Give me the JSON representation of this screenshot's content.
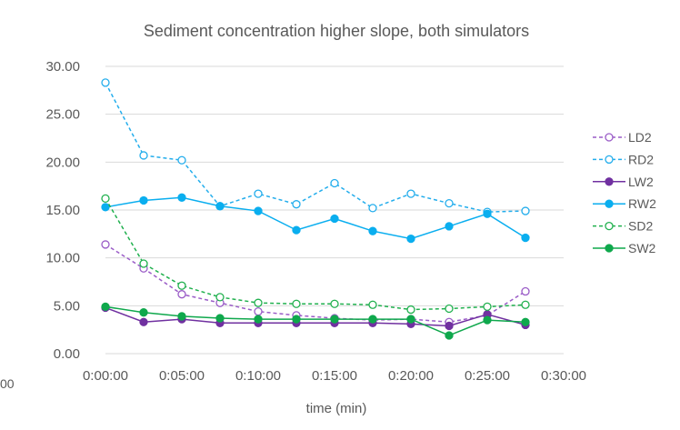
{
  "chart_data": {
    "type": "line",
    "title": "Sediment concentration higher slope, both simulators",
    "xlabel": "time (min)",
    "ylabel": "",
    "x_ticks": [
      "0:00:00",
      "0:05:00",
      "0:10:00",
      "0:15:00",
      "0:20:00",
      "0:25:00",
      "0:30:00"
    ],
    "y_ticks": [
      "0.00",
      "5.00",
      "10.00",
      "15.00",
      "20.00",
      "25.00",
      "30.00"
    ],
    "xlim": [
      "0:00:00",
      "0:30:00"
    ],
    "ylim": [
      0,
      30
    ],
    "grid": true,
    "legend_position": "right",
    "stray_left_label": "00",
    "x": [
      "0:00:00",
      "0:02:30",
      "0:05:00",
      "0:07:30",
      "0:10:00",
      "0:12:30",
      "0:15:00",
      "0:17:30",
      "0:20:00",
      "0:22:30",
      "0:25:00",
      "0:27:30"
    ],
    "series": [
      {
        "name": "LD2",
        "color": "#9a5cc7",
        "dashed": true,
        "marker": "open",
        "values": [
          11.4,
          8.9,
          6.2,
          5.3,
          4.4,
          4.0,
          3.7,
          3.5,
          3.6,
          3.3,
          4.0,
          6.5
        ]
      },
      {
        "name": "RD2",
        "color": "#23adec",
        "dashed": true,
        "marker": "open",
        "values": [
          28.3,
          20.7,
          20.2,
          15.4,
          16.7,
          15.6,
          17.8,
          15.2,
          16.7,
          15.7,
          14.8,
          14.9
        ]
      },
      {
        "name": "LW2",
        "color": "#7030a0",
        "dashed": false,
        "marker": "filled",
        "values": [
          4.8,
          3.3,
          3.6,
          3.2,
          3.2,
          3.2,
          3.2,
          3.2,
          3.1,
          2.9,
          4.1,
          3.0
        ]
      },
      {
        "name": "RW2",
        "color": "#0aaeef",
        "dashed": false,
        "marker": "filled",
        "values": [
          15.3,
          16.0,
          16.3,
          15.4,
          14.9,
          12.9,
          14.1,
          12.8,
          12.0,
          13.3,
          14.6,
          12.1
        ]
      },
      {
        "name": "SD2",
        "color": "#20b04e",
        "dashed": true,
        "marker": "open",
        "values": [
          16.2,
          9.4,
          7.1,
          5.9,
          5.3,
          5.2,
          5.2,
          5.1,
          4.6,
          4.7,
          4.9,
          5.1
        ]
      },
      {
        "name": "SW2",
        "color": "#0fa84c",
        "dashed": false,
        "marker": "filled",
        "values": [
          4.9,
          4.3,
          3.9,
          3.7,
          3.6,
          3.6,
          3.6,
          3.6,
          3.6,
          1.9,
          3.5,
          3.3
        ]
      }
    ]
  }
}
